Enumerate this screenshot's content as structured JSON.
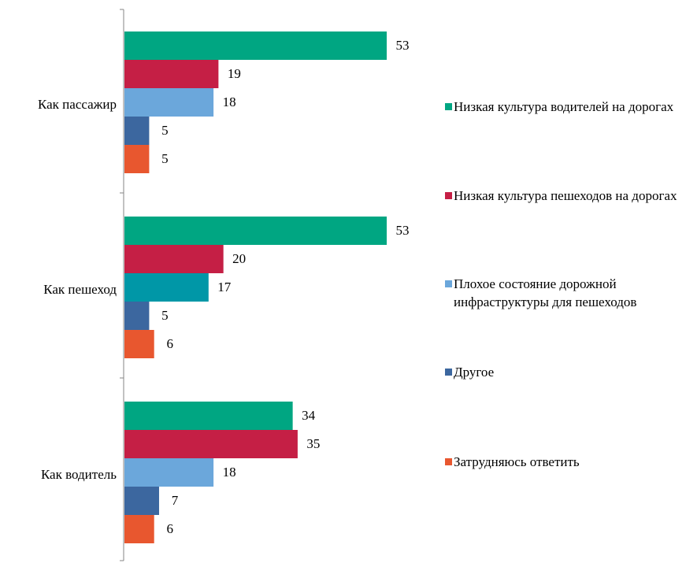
{
  "chart_data": {
    "type": "bar",
    "orientation": "horizontal",
    "categories": [
      "Как пассажир",
      "Как пешеход",
      "Как водитель"
    ],
    "series": [
      {
        "name": "Низкая культура водителей на дорогах",
        "values": [
          53,
          53,
          34
        ],
        "color": "#00A682"
      },
      {
        "name": "Низкая культура пешеходов на дорогах",
        "values": [
          19,
          20,
          35
        ],
        "color": "#C51F45"
      },
      {
        "name": "Плохое состояние дорожной инфраструктуры для пешеходов",
        "values": [
          18,
          17,
          18
        ],
        "color": "#6BA7DB",
        "point_colors": [
          "#6BA7DB",
          "#0097A7",
          "#6BA7DB"
        ]
      },
      {
        "name": "Другое",
        "values": [
          5,
          5,
          7
        ],
        "color": "#3C679F"
      },
      {
        "name": "Затрудняюсь ответить",
        "values": [
          5,
          6,
          6
        ],
        "color": "#E8572F"
      }
    ],
    "xlim": [
      0,
      53
    ],
    "legend_position": "right",
    "grid": false
  }
}
